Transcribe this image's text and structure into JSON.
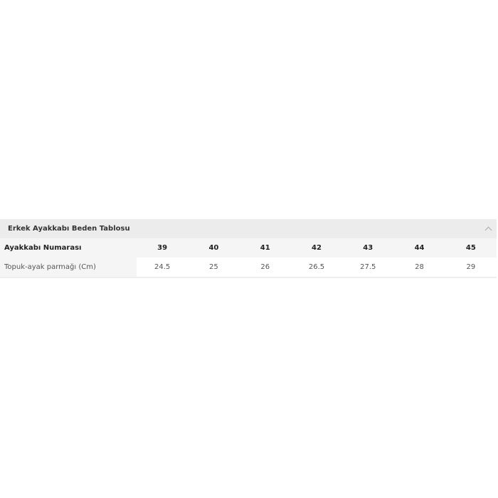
{
  "table": {
    "title": "Erkek Ayakkabı Beden Tablosu",
    "collapse_icon": "chevron-up-icon",
    "rows": [
      {
        "label": "Ayakkabı Numarası",
        "values": [
          "39",
          "40",
          "41",
          "42",
          "43",
          "44",
          "45"
        ]
      },
      {
        "label": "Topuk-ayak parmağı (Cm)",
        "values": [
          "24.5",
          "25",
          "26",
          "26.5",
          "27.5",
          "28",
          "29"
        ]
      }
    ]
  }
}
